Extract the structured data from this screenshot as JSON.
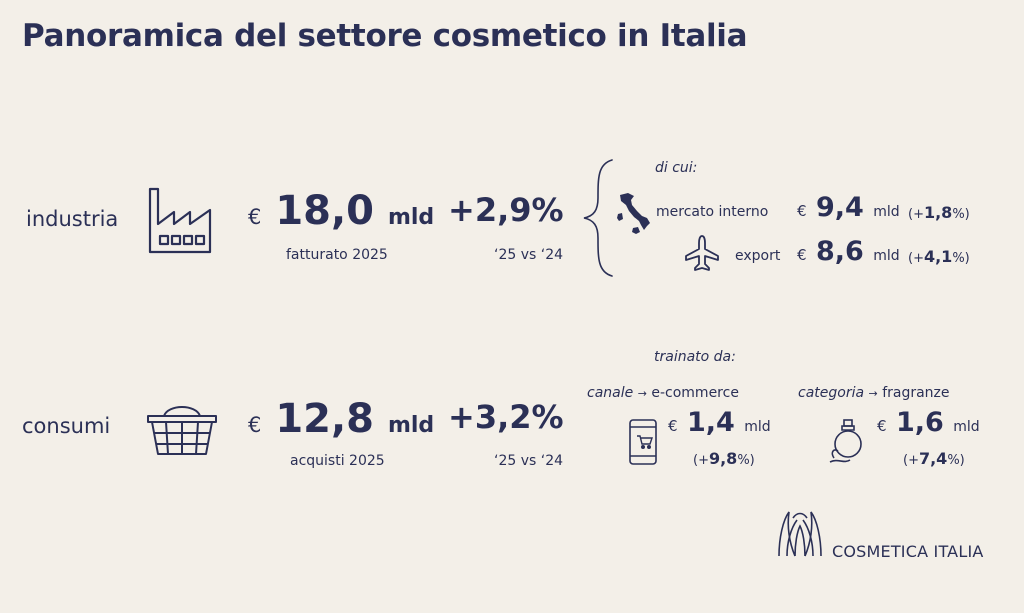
{
  "title": "Panoramica del settore cosmetico in Italia",
  "industria": {
    "label": "industria",
    "currency": "€",
    "value": "18,0",
    "unit": "mld",
    "caption": "fatturato 2025",
    "growth": "+2,9%",
    "growth_caption": "‘25 vs ‘24",
    "breakdown_title": "di cui:",
    "interno": {
      "label": "mercato interno",
      "currency": "€",
      "value": "9,4",
      "unit": "mld",
      "pct_open": "(+",
      "pct_value": "1,8",
      "pct_close": "%)"
    },
    "export": {
      "label": "export",
      "currency": "€",
      "value": "8,6",
      "unit": "mld",
      "pct_open": "(+",
      "pct_value": "4,1",
      "pct_close": "%)"
    }
  },
  "consumi": {
    "label": "consumi",
    "currency": "€",
    "value": "12,8",
    "unit": "mld",
    "caption": "acquisti 2025",
    "growth": "+3,2%",
    "growth_caption": "‘25 vs ‘24",
    "drivers_title": "trainato da:",
    "canale": {
      "label": "canale",
      "arrow": "→",
      "name": "e-commerce",
      "currency": "€",
      "value": "1,4",
      "unit": "mld",
      "pct_open": "(+",
      "pct_value": "9,8",
      "pct_close": "%)"
    },
    "categoria": {
      "label": "categoria",
      "arrow": "→",
      "name": "fragranze",
      "currency": "€",
      "value": "1,6",
      "unit": "mld",
      "pct_open": "(+",
      "pct_value": "7,4",
      "pct_close": "%)"
    }
  },
  "logo": {
    "name": "COSMETICA ITALIA"
  },
  "icons": {
    "factory": "factory-icon",
    "basket": "basket-icon",
    "italy": "italy-map-icon",
    "plane": "airplane-icon",
    "phone": "smartphone-cart-icon",
    "perfume": "perfume-bottle-icon",
    "logo": "cosmetica-italia-logo"
  },
  "colors": {
    "background": "#f3efe8",
    "text": "#2b3056"
  }
}
